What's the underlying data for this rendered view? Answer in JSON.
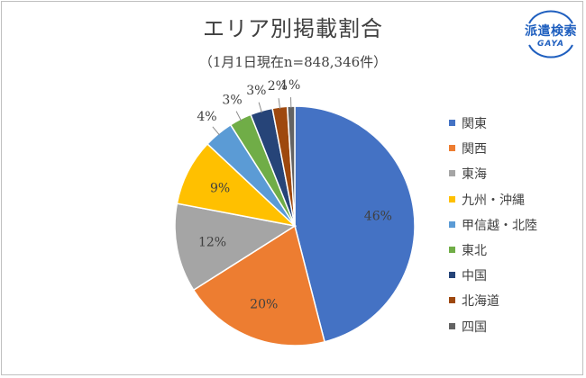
{
  "title": "エリア別掲載割合",
  "subtitle": "（1月1日現在n=848,346件）",
  "logo": {
    "main": "派遣検索",
    "sub": "GAYA",
    "color": "#1f5fbf"
  },
  "chart_data": {
    "type": "pie",
    "title": "エリア別掲載割合",
    "subtitle": "（1月1日現在n=848,346件）",
    "legend_position": "right",
    "categories": [
      "関東",
      "関西",
      "東海",
      "九州・沖縄",
      "甲信越・北陸",
      "東北",
      "中国",
      "北海道",
      "四国"
    ],
    "values": [
      46,
      20,
      12,
      9,
      4,
      3,
      3,
      2,
      1
    ],
    "data_labels": [
      "46%",
      "20%",
      "12%",
      "9%",
      "4%",
      "3%",
      "3%",
      "2%",
      "1%"
    ],
    "colors": [
      "#4472c4",
      "#ed7d31",
      "#a5a5a5",
      "#ffc000",
      "#5b9bd5",
      "#70ad47",
      "#264478",
      "#9e480e",
      "#636363"
    ]
  }
}
